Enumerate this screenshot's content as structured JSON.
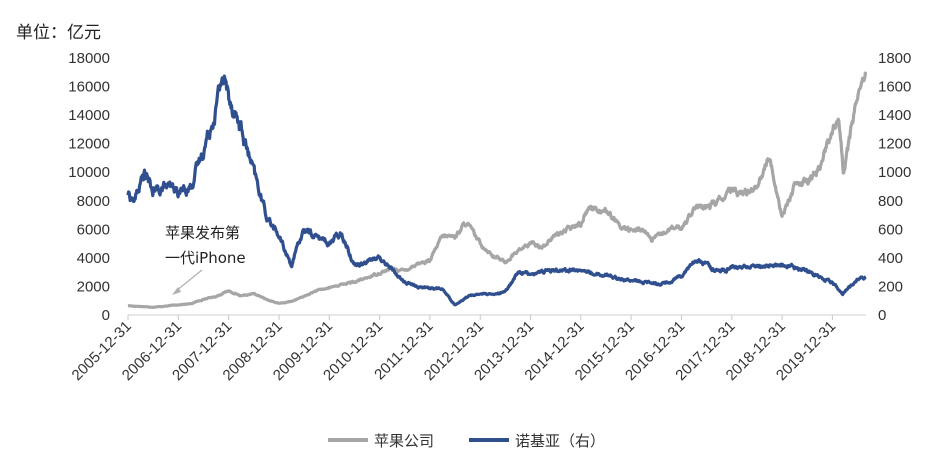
{
  "chart_data": {
    "type": "line",
    "y_unit_label": "单位：亿元",
    "x_tick_labels": [
      "2005-12-31",
      "2006-12-31",
      "2007-12-31",
      "2008-12-31",
      "2009-12-31",
      "2010-12-31",
      "2011-12-31",
      "2012-12-31",
      "2013-12-31",
      "2014-12-31",
      "2015-12-31",
      "2016-12-31",
      "2017-12-31",
      "2018-12-31",
      "2019-12-31"
    ],
    "x_range": [
      "2005-12-31",
      "2020-08-31"
    ],
    "ylim_left": [
      0,
      18000
    ],
    "yticks_left": [
      "0",
      "2000",
      "4000",
      "6000",
      "8000",
      "10000",
      "12000",
      "14000",
      "16000",
      "18000"
    ],
    "ylim_right": [
      0,
      1800
    ],
    "yticks_right": [
      "0",
      "200",
      "400",
      "600",
      "800",
      "1000",
      "1200",
      "1400",
      "1600",
      "1800"
    ],
    "grid": false,
    "legend_position": "bottom-center",
    "annotation": {
      "lines": [
        "苹果发布第",
        "一代iPhone"
      ],
      "target_date": "2007-01-09",
      "target_value": 900
    },
    "series": [
      {
        "name": "苹果公司",
        "axis": "left",
        "color": "#A6A6A6",
        "points": [
          [
            "2005-12-31",
            650
          ],
          [
            "2006-03-31",
            600
          ],
          [
            "2006-06-30",
            550
          ],
          [
            "2006-09-30",
            620
          ],
          [
            "2006-12-31",
            720
          ],
          [
            "2007-03-31",
            780
          ],
          [
            "2007-06-30",
            1100
          ],
          [
            "2007-09-30",
            1300
          ],
          [
            "2007-12-31",
            1700
          ],
          [
            "2008-03-31",
            1300
          ],
          [
            "2008-06-30",
            1500
          ],
          [
            "2008-09-30",
            1100
          ],
          [
            "2008-12-31",
            800
          ],
          [
            "2009-03-31",
            950
          ],
          [
            "2009-06-30",
            1300
          ],
          [
            "2009-09-30",
            1700
          ],
          [
            "2009-12-31",
            1900
          ],
          [
            "2010-03-31",
            2150
          ],
          [
            "2010-06-30",
            2300
          ],
          [
            "2010-09-30",
            2600
          ],
          [
            "2010-12-31",
            2950
          ],
          [
            "2011-03-31",
            3250
          ],
          [
            "2011-06-30",
            3100
          ],
          [
            "2011-09-30",
            3600
          ],
          [
            "2011-12-31",
            3800
          ],
          [
            "2012-03-31",
            5500
          ],
          [
            "2012-06-30",
            5500
          ],
          [
            "2012-09-21",
            6500
          ],
          [
            "2012-12-31",
            5000
          ],
          [
            "2013-03-31",
            4200
          ],
          [
            "2013-06-30",
            3700
          ],
          [
            "2013-09-30",
            4500
          ],
          [
            "2013-12-31",
            5000
          ],
          [
            "2014-03-31",
            4800
          ],
          [
            "2014-06-30",
            5600
          ],
          [
            "2014-09-30",
            6000
          ],
          [
            "2014-12-31",
            6400
          ],
          [
            "2015-02-28",
            7600
          ],
          [
            "2015-06-30",
            7300
          ],
          [
            "2015-09-30",
            6300
          ],
          [
            "2015-12-31",
            5900
          ],
          [
            "2016-03-31",
            6000
          ],
          [
            "2016-05-31",
            5200
          ],
          [
            "2016-09-30",
            6000
          ],
          [
            "2016-12-31",
            6100
          ],
          [
            "2017-03-31",
            7500
          ],
          [
            "2017-06-30",
            7500
          ],
          [
            "2017-09-30",
            8000
          ],
          [
            "2017-12-31",
            8700
          ],
          [
            "2018-03-31",
            8500
          ],
          [
            "2018-06-30",
            9100
          ],
          [
            "2018-09-30",
            11000
          ],
          [
            "2018-12-31",
            7000
          ],
          [
            "2019-03-31",
            9000
          ],
          [
            "2019-06-30",
            9300
          ],
          [
            "2019-09-30",
            10300
          ],
          [
            "2019-12-31",
            13000
          ],
          [
            "2020-02-15",
            14000
          ],
          [
            "2020-03-20",
            9800
          ],
          [
            "2020-06-30",
            15500
          ],
          [
            "2020-08-31",
            17000
          ]
        ]
      },
      {
        "name": "诺基亚（右）",
        "axis": "right",
        "color": "#2F4F8F",
        "points": [
          [
            "2005-12-31",
            850
          ],
          [
            "2006-02-15",
            800
          ],
          [
            "2006-04-30",
            1000
          ],
          [
            "2006-06-30",
            860
          ],
          [
            "2006-09-30",
            900
          ],
          [
            "2006-12-31",
            860
          ],
          [
            "2007-03-31",
            900
          ],
          [
            "2007-06-30",
            1150
          ],
          [
            "2007-09-30",
            1450
          ],
          [
            "2007-11-15",
            1680
          ],
          [
            "2007-12-31",
            1550
          ],
          [
            "2008-03-31",
            1300
          ],
          [
            "2008-06-30",
            1000
          ],
          [
            "2008-09-30",
            700
          ],
          [
            "2008-12-31",
            550
          ],
          [
            "2009-03-31",
            350
          ],
          [
            "2009-06-30",
            600
          ],
          [
            "2009-09-30",
            550
          ],
          [
            "2009-12-31",
            500
          ],
          [
            "2010-03-31",
            580
          ],
          [
            "2010-06-30",
            350
          ],
          [
            "2010-09-30",
            380
          ],
          [
            "2010-12-31",
            400
          ],
          [
            "2011-03-31",
            320
          ],
          [
            "2011-06-30",
            230
          ],
          [
            "2011-09-30",
            200
          ],
          [
            "2011-12-31",
            190
          ],
          [
            "2012-03-31",
            180
          ],
          [
            "2012-06-30",
            70
          ],
          [
            "2012-09-30",
            130
          ],
          [
            "2012-12-31",
            150
          ],
          [
            "2013-03-31",
            140
          ],
          [
            "2013-06-30",
            160
          ],
          [
            "2013-09-30",
            300
          ],
          [
            "2013-12-31",
            290
          ],
          [
            "2014-06-30",
            320
          ],
          [
            "2014-12-31",
            310
          ],
          [
            "2015-06-30",
            280
          ],
          [
            "2015-12-31",
            240
          ],
          [
            "2016-06-30",
            220
          ],
          [
            "2016-09-30",
            230
          ],
          [
            "2016-12-31",
            280
          ],
          [
            "2017-03-31",
            380
          ],
          [
            "2017-06-30",
            360
          ],
          [
            "2017-09-30",
            300
          ],
          [
            "2017-12-31",
            330
          ],
          [
            "2018-06-30",
            340
          ],
          [
            "2018-12-31",
            350
          ],
          [
            "2019-06-30",
            310
          ],
          [
            "2019-12-31",
            230
          ],
          [
            "2020-03-15",
            150
          ],
          [
            "2020-06-30",
            250
          ],
          [
            "2020-08-31",
            260
          ]
        ]
      }
    ]
  }
}
